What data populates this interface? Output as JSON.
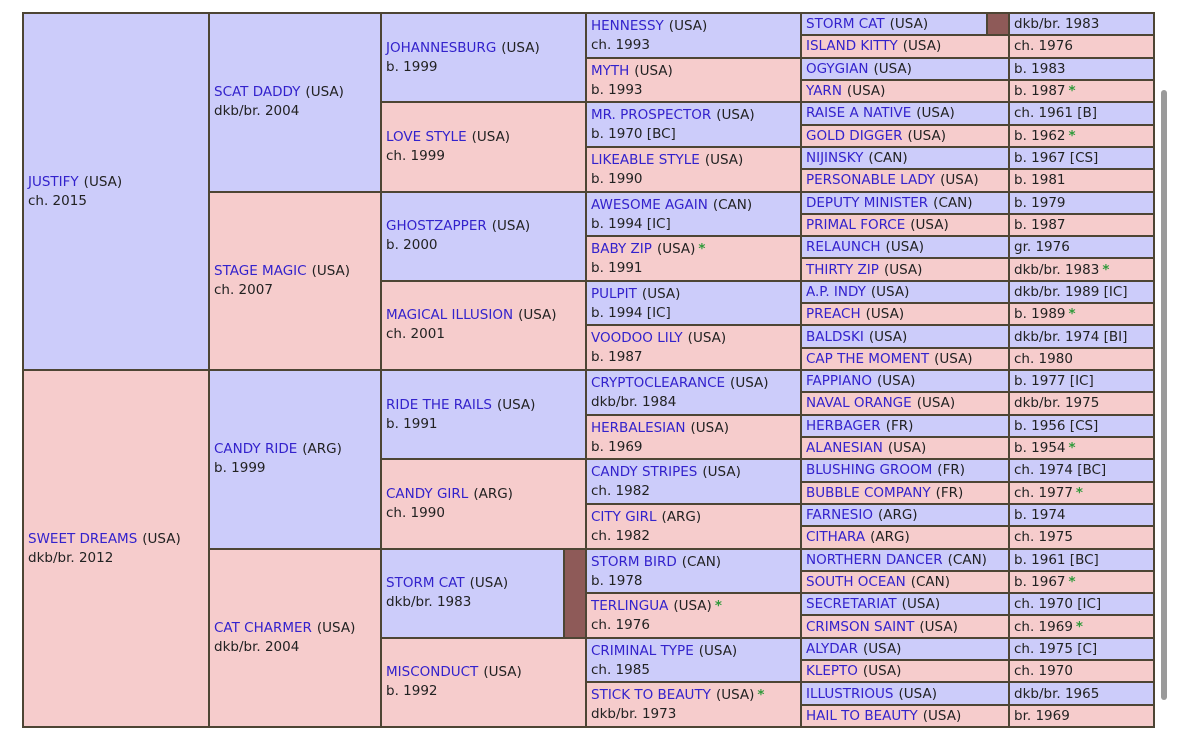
{
  "generations": [
    [
      {
        "name": "JUSTIFY",
        "origin": "(USA)",
        "info": "ch. 2015"
      },
      {
        "name": "SWEET DREAMS",
        "origin": "(USA)",
        "info": "dkb/br. 2012"
      }
    ],
    [
      {
        "name": "SCAT DADDY",
        "origin": "(USA)",
        "info": "dkb/br. 2004"
      },
      {
        "name": "STAGE MAGIC",
        "origin": "(USA)",
        "info": "ch. 2007"
      },
      {
        "name": "CANDY RIDE",
        "origin": "(ARG)",
        "info": "b. 1999"
      },
      {
        "name": "CAT CHARMER",
        "origin": "(USA)",
        "info": "dkb/br. 2004"
      }
    ],
    [
      {
        "name": "JOHANNESBURG",
        "origin": "(USA)",
        "info": "b. 1999"
      },
      {
        "name": "LOVE STYLE",
        "origin": "(USA)",
        "info": "ch. 1999"
      },
      {
        "name": "GHOSTZAPPER",
        "origin": "(USA)",
        "info": "b. 2000"
      },
      {
        "name": "MAGICAL ILLUSION",
        "origin": "(USA)",
        "info": "ch. 2001"
      },
      {
        "name": "RIDE THE RAILS",
        "origin": "(USA)",
        "info": "b. 1991"
      },
      {
        "name": "CANDY GIRL",
        "origin": "(ARG)",
        "info": "ch. 1990"
      },
      {
        "name": "STORM CAT",
        "origin": "(USA)",
        "info": "dkb/br. 1983",
        "inbreeding_bar": true
      },
      {
        "name": "MISCONDUCT",
        "origin": "(USA)",
        "info": "b. 1992"
      }
    ],
    [
      {
        "name": "HENNESSY",
        "origin": "(USA)",
        "info": "ch. 1993"
      },
      {
        "name": "MYTH",
        "origin": "(USA)",
        "info": "b. 1993"
      },
      {
        "name": "MR. PROSPECTOR",
        "origin": "(USA)",
        "info": "b. 1970 [BC]"
      },
      {
        "name": "LIKEABLE STYLE",
        "origin": "(USA)",
        "info": "b. 1990"
      },
      {
        "name": "AWESOME AGAIN",
        "origin": "(CAN)",
        "info": "b. 1994 [IC]"
      },
      {
        "name": "BABY ZIP",
        "origin": "(USA)",
        "star": "*",
        "info": "b. 1991"
      },
      {
        "name": "PULPIT",
        "origin": "(USA)",
        "info": "b. 1994 [IC]"
      },
      {
        "name": "VOODOO LILY",
        "origin": "(USA)",
        "info": "b. 1987"
      },
      {
        "name": "CRYPTOCLEARANCE",
        "origin": "(USA)",
        "info": "dkb/br. 1984"
      },
      {
        "name": "HERBALESIAN",
        "origin": "(USA)",
        "info": "b. 1969"
      },
      {
        "name": "CANDY STRIPES",
        "origin": "(USA)",
        "info": "ch. 1982"
      },
      {
        "name": "CITY GIRL",
        "origin": "(ARG)",
        "info": "ch. 1982"
      },
      {
        "name": "STORM BIRD",
        "origin": "(CAN)",
        "info": "b. 1978"
      },
      {
        "name": "TERLINGUA",
        "origin": "(USA)",
        "star": "*",
        "info": "ch. 1976"
      },
      {
        "name": "CRIMINAL TYPE",
        "origin": "(USA)",
        "info": "ch. 1985"
      },
      {
        "name": "STICK TO BEAUTY",
        "origin": "(USA)",
        "star": "*",
        "info": "dkb/br. 1973"
      }
    ],
    [
      {
        "name": "STORM CAT",
        "origin": "(USA)",
        "info": "dkb/br. 1983",
        "inbreeding_bar": true
      },
      {
        "name": "ISLAND KITTY",
        "origin": "(USA)",
        "info": "ch. 1976"
      },
      {
        "name": "OGYGIAN",
        "origin": "(USA)",
        "info": "b. 1983"
      },
      {
        "name": "YARN",
        "origin": "(USA)",
        "info": "b. 1987",
        "star": "*"
      },
      {
        "name": "RAISE A NATIVE",
        "origin": "(USA)",
        "info": "ch. 1961 [B]"
      },
      {
        "name": "GOLD DIGGER",
        "origin": "(USA)",
        "info": "b. 1962",
        "star": "*"
      },
      {
        "name": "NIJINSKY",
        "origin": "(CAN)",
        "info": "b. 1967 [CS]"
      },
      {
        "name": "PERSONABLE LADY",
        "origin": "(USA)",
        "info": "b. 1981"
      },
      {
        "name": "DEPUTY MINISTER",
        "origin": "(CAN)",
        "info": "b. 1979"
      },
      {
        "name": "PRIMAL FORCE",
        "origin": "(USA)",
        "info": "b. 1987"
      },
      {
        "name": "RELAUNCH",
        "origin": "(USA)",
        "info": "gr. 1976"
      },
      {
        "name": "THIRTY ZIP",
        "origin": "(USA)",
        "info": "dkb/br. 1983",
        "star": "*"
      },
      {
        "name": "A.P. INDY",
        "origin": "(USA)",
        "info": "dkb/br. 1989 [IC]"
      },
      {
        "name": "PREACH",
        "origin": "(USA)",
        "info": "b. 1989",
        "star": "*"
      },
      {
        "name": "BALDSKI",
        "origin": "(USA)",
        "info": "dkb/br. 1974 [BI]"
      },
      {
        "name": "CAP THE MOMENT",
        "origin": "(USA)",
        "info": "ch. 1980"
      },
      {
        "name": "FAPPIANO",
        "origin": "(USA)",
        "info": "b. 1977 [IC]"
      },
      {
        "name": "NAVAL ORANGE",
        "origin": "(USA)",
        "info": "dkb/br. 1975"
      },
      {
        "name": "HERBAGER",
        "origin": "(FR)",
        "info": "b. 1956 [CS]"
      },
      {
        "name": "ALANESIAN",
        "origin": "(USA)",
        "info": "b. 1954",
        "star": "*"
      },
      {
        "name": "BLUSHING GROOM",
        "origin": "(FR)",
        "info": "ch. 1974 [BC]"
      },
      {
        "name": "BUBBLE COMPANY",
        "origin": "(FR)",
        "info": "ch. 1977",
        "star": "*"
      },
      {
        "name": "FARNESIO",
        "origin": "(ARG)",
        "info": "b. 1974"
      },
      {
        "name": "CITHARA",
        "origin": "(ARG)",
        "info": "ch. 1975"
      },
      {
        "name": "NORTHERN DANCER",
        "origin": "(CAN)",
        "info": "b. 1961 [BC]"
      },
      {
        "name": "SOUTH OCEAN",
        "origin": "(CAN)",
        "info": "b. 1967",
        "star": "*"
      },
      {
        "name": "SECRETARIAT",
        "origin": "(USA)",
        "info": "ch. 1970 [IC]"
      },
      {
        "name": "CRIMSON SAINT",
        "origin": "(USA)",
        "info": "ch. 1969",
        "star": "*"
      },
      {
        "name": "ALYDAR",
        "origin": "(USA)",
        "info": "ch. 1975 [C]"
      },
      {
        "name": "KLEPTO",
        "origin": "(USA)",
        "info": "ch. 1970"
      },
      {
        "name": "ILLUSTRIOUS",
        "origin": "(USA)",
        "info": "dkb/br. 1965"
      },
      {
        "name": "HAIL TO BEAUTY",
        "origin": "(USA)",
        "info": "br. 1969"
      }
    ]
  ]
}
